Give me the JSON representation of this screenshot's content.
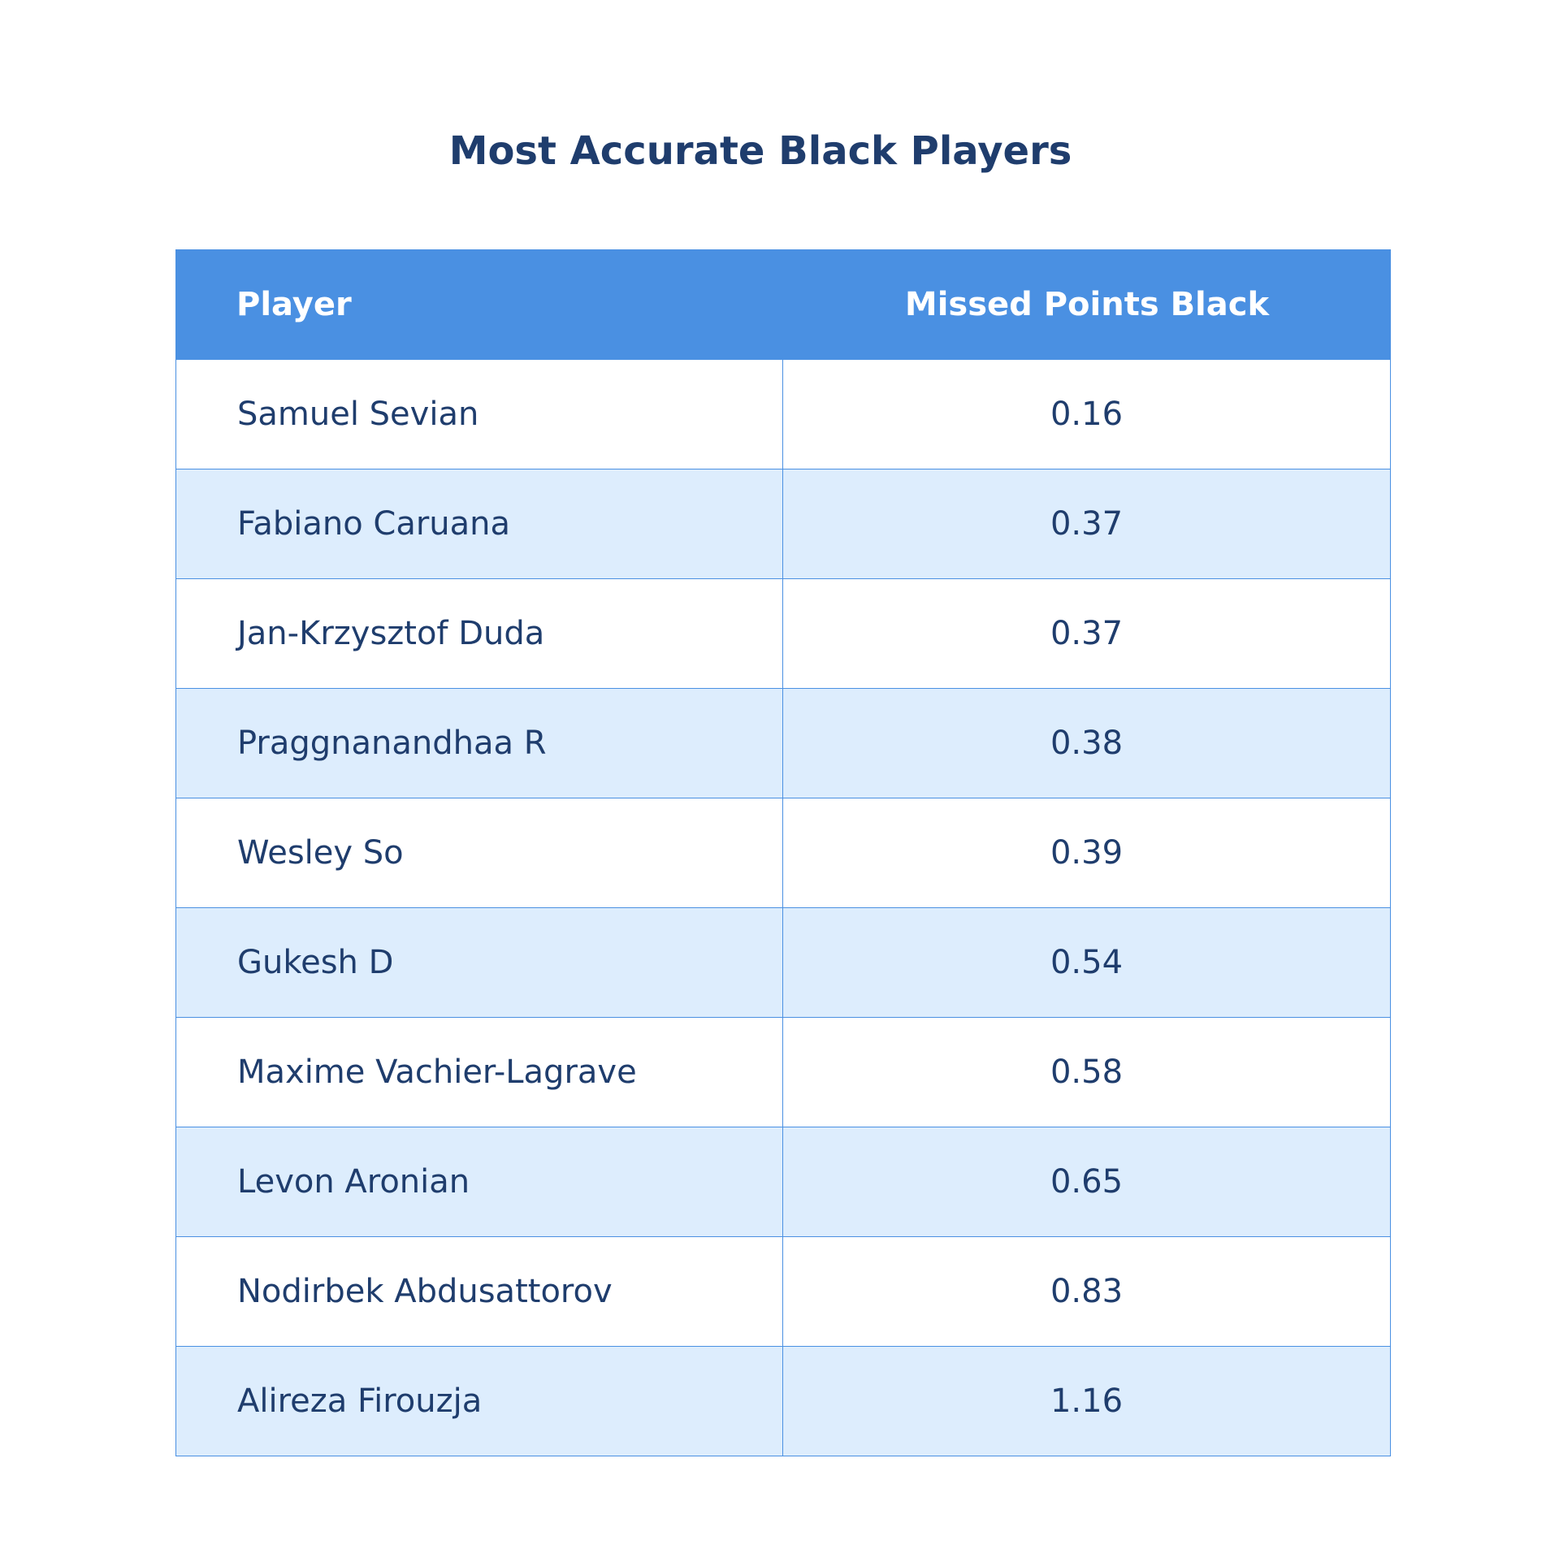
{
  "chart_data": {
    "type": "table",
    "title": "Most Accurate Black Players",
    "columns": [
      "Player",
      "Missed Points Black"
    ],
    "rows": [
      {
        "player": "Samuel Sevian",
        "value": "0.16"
      },
      {
        "player": "Fabiano Caruana",
        "value": "0.37"
      },
      {
        "player": "Jan-Krzysztof Duda",
        "value": "0.37"
      },
      {
        "player": "Praggnanandhaa R",
        "value": "0.38"
      },
      {
        "player": "Wesley So",
        "value": "0.39"
      },
      {
        "player": "Gukesh D",
        "value": "0.54"
      },
      {
        "player": "Maxime Vachier-Lagrave",
        "value": "0.58"
      },
      {
        "player": "Levon Aronian",
        "value": "0.65"
      },
      {
        "player": "Nodirbek Abdusattorov",
        "value": "0.83"
      },
      {
        "player": "Alireza Firouzja",
        "value": "1.16"
      }
    ],
    "colors": {
      "header_bg": "#4a90e2",
      "header_text": "#ffffff",
      "body_text": "#1f3d6d",
      "row_alt_bg": "#ddedfd",
      "row_bg": "#ffffff",
      "border": "#4a90e2"
    }
  }
}
